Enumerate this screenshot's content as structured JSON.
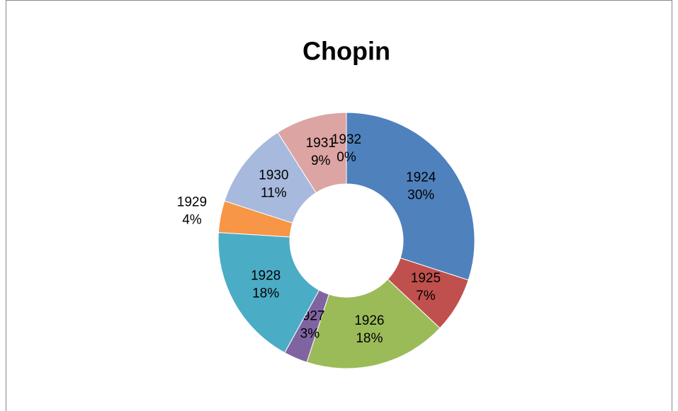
{
  "chart_data": {
    "type": "donut",
    "title": "Chopin",
    "categories": [
      "1924",
      "1925",
      "1926",
      "1927",
      "1928",
      "1929",
      "1930",
      "1931",
      "1932"
    ],
    "values": [
      30,
      7,
      18,
      3,
      18,
      4,
      11,
      9,
      0
    ],
    "value_labels": [
      "30%",
      "7%",
      "18%",
      "3%",
      "18%",
      "4%",
      "11%",
      "9%",
      "0%"
    ],
    "colors": [
      "#4f81bd",
      "#c0504d",
      "#9bbb59",
      "#8064a2",
      "#4bacc6",
      "#f79646",
      "#a7b9dd",
      "#dca4a3",
      "#c3d69b"
    ]
  }
}
